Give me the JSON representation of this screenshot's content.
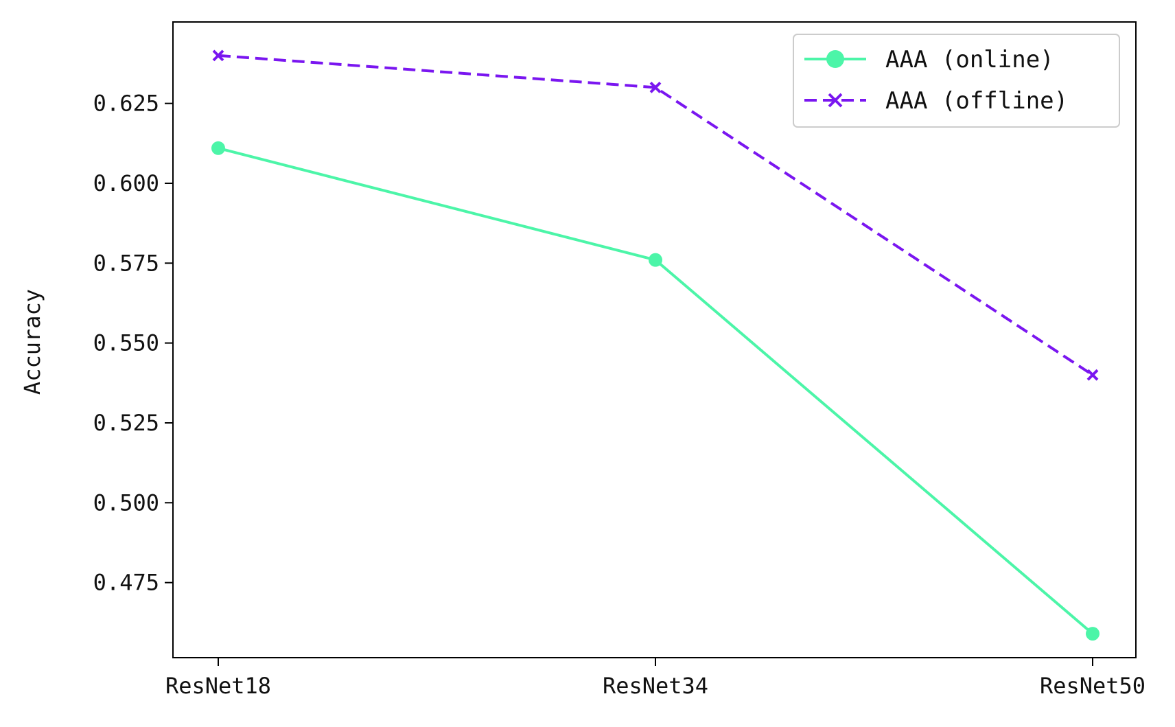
{
  "chart_data": {
    "type": "line",
    "title": "",
    "xlabel": "",
    "ylabel": "Accuracy",
    "categories": [
      "ResNet18",
      "ResNet34",
      "ResNet50"
    ],
    "series": [
      {
        "name": "AAA (online)",
        "values": [
          0.611,
          0.576,
          0.459
        ],
        "color": "#4cf5a8",
        "line_style": "solid",
        "marker": "circle"
      },
      {
        "name": "AAA (offline)",
        "values": [
          0.64,
          0.63,
          0.54
        ],
        "color": "#7a16f0",
        "line_style": "dashed",
        "marker": "x"
      }
    ],
    "ylim": [
      0.4515,
      0.6505
    ],
    "yticks": [
      0.475,
      0.5,
      0.525,
      0.55,
      0.575,
      0.6,
      0.625
    ],
    "ytick_labels": [
      "0.475",
      "0.500",
      "0.525",
      "0.550",
      "0.575",
      "0.600",
      "0.625"
    ],
    "grid": false,
    "legend_position": "top-right"
  }
}
